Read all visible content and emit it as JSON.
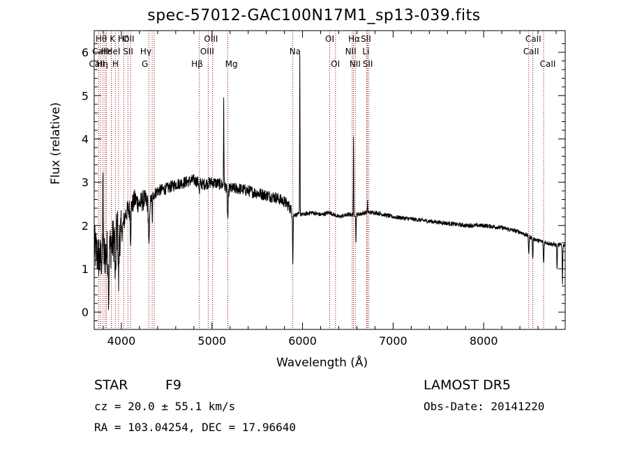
{
  "header": {
    "title": "spec-57012-GAC100N17M1_sp13-039.fits"
  },
  "info": {
    "object_class": "STAR",
    "subclass": "F9",
    "survey": "LAMOST DR5",
    "cz": "cz = 20.0 ± 55.1 km/s",
    "obs_date": "Obs-Date: 20141220",
    "radec": "RA = 103.04254, DEC =  17.96640"
  },
  "chart_data": {
    "type": "line",
    "title": "spec-57012-GAC100N17M1_sp13-039.fits",
    "xlabel": "Wavelength (Å)",
    "ylabel": "Flux (relative)",
    "xlim": [
      3700,
      8900
    ],
    "ylim": [
      -0.4,
      6.5
    ],
    "xticks": [
      4000,
      5000,
      6000,
      7000,
      8000
    ],
    "yticks": [
      0,
      1,
      2,
      3,
      4,
      5,
      6
    ],
    "colors": {
      "line": "#000000",
      "marker_lines": "#8b0000"
    },
    "continuum": [
      [
        3700,
        1.5
      ],
      [
        3760,
        1.2
      ],
      [
        3800,
        1.3
      ],
      [
        3850,
        1.4
      ],
      [
        3900,
        1.6
      ],
      [
        3950,
        1.9
      ],
      [
        4000,
        1.8
      ],
      [
        4050,
        2.3
      ],
      [
        4100,
        2.4
      ],
      [
        4150,
        2.6
      ],
      [
        4200,
        2.5
      ],
      [
        4250,
        2.6
      ],
      [
        4300,
        2.5
      ],
      [
        4350,
        2.7
      ],
      [
        4400,
        2.8
      ],
      [
        4500,
        2.85
      ],
      [
        4600,
        2.95
      ],
      [
        4700,
        3.0
      ],
      [
        4800,
        3.05
      ],
      [
        4900,
        2.95
      ],
      [
        5000,
        3.0
      ],
      [
        5100,
        2.95
      ],
      [
        5200,
        2.85
      ],
      [
        5300,
        2.85
      ],
      [
        5400,
        2.8
      ],
      [
        5500,
        2.75
      ],
      [
        5600,
        2.7
      ],
      [
        5700,
        2.65
      ],
      [
        5800,
        2.55
      ],
      [
        5850,
        2.45
      ],
      [
        5900,
        2.25
      ],
      [
        6000,
        2.25
      ],
      [
        6100,
        2.3
      ],
      [
        6200,
        2.25
      ],
      [
        6300,
        2.3
      ],
      [
        6400,
        2.2
      ],
      [
        6500,
        2.25
      ],
      [
        6600,
        2.25
      ],
      [
        6700,
        2.3
      ],
      [
        6800,
        2.3
      ],
      [
        6900,
        2.25
      ],
      [
        7000,
        2.2
      ],
      [
        7200,
        2.15
      ],
      [
        7400,
        2.1
      ],
      [
        7600,
        2.05
      ],
      [
        7800,
        2.0
      ],
      [
        8000,
        2.0
      ],
      [
        8200,
        1.95
      ],
      [
        8400,
        1.85
      ],
      [
        8500,
        1.75
      ],
      [
        8600,
        1.65
      ],
      [
        8700,
        1.6
      ],
      [
        8800,
        1.55
      ],
      [
        8900,
        1.55
      ]
    ],
    "features": [
      {
        "x": 3797,
        "depth": 2.3,
        "width": 3,
        "sign": 1
      },
      {
        "x": 3860,
        "depth": 1.0,
        "width": 6,
        "sign": -1
      },
      {
        "x": 3934,
        "depth": 1.2,
        "width": 6,
        "sign": -1
      },
      {
        "x": 3969,
        "depth": 1.2,
        "width": 6,
        "sign": -1
      },
      {
        "x": 4102,
        "depth": 0.7,
        "width": 5,
        "sign": -1
      },
      {
        "x": 4305,
        "depth": 1.0,
        "width": 8,
        "sign": -1
      },
      {
        "x": 4341,
        "depth": 0.6,
        "width": 4,
        "sign": -1
      },
      {
        "x": 4861,
        "depth": 0.3,
        "width": 4,
        "sign": -1
      },
      {
        "x": 5130,
        "depth": 2.1,
        "width": 3,
        "sign": 1
      },
      {
        "x": 5175,
        "depth": 0.7,
        "width": 8,
        "sign": -1
      },
      {
        "x": 5893,
        "depth": 1.2,
        "width": 4,
        "sign": -1
      },
      {
        "x": 5970,
        "depth": 3.7,
        "width": 3,
        "sign": 1
      },
      {
        "x": 6563,
        "depth": 1.8,
        "width": 3,
        "sign": 1
      },
      {
        "x": 6590,
        "depth": 0.6,
        "width": 3,
        "sign": -1
      },
      {
        "x": 6718,
        "depth": 0.25,
        "width": 3,
        "sign": 1
      },
      {
        "x": 8498,
        "depth": 0.4,
        "width": 5,
        "sign": -1
      },
      {
        "x": 8542,
        "depth": 0.5,
        "width": 5,
        "sign": -1
      },
      {
        "x": 8662,
        "depth": 0.5,
        "width": 5,
        "sign": -1
      },
      {
        "x": 8810,
        "depth": 0.6,
        "width": 4,
        "sign": -1
      },
      {
        "x": 8870,
        "depth": 0.9,
        "width": 4,
        "sign": -1
      }
    ],
    "line_markers": [
      {
        "x": 3750
      },
      {
        "x": 3771
      },
      {
        "x": 3798
      },
      {
        "x": 3820
      },
      {
        "x": 3835
      },
      {
        "x": 3889
      },
      {
        "x": 3934
      },
      {
        "x": 3969
      },
      {
        "x": 4026
      },
      {
        "x": 4072
      },
      {
        "x": 4102
      },
      {
        "x": 4304
      },
      {
        "x": 4340
      },
      {
        "x": 4363
      },
      {
        "x": 4861
      },
      {
        "x": 4959
      },
      {
        "x": 5007
      },
      {
        "x": 5175
      },
      {
        "x": 5893
      },
      {
        "x": 6300
      },
      {
        "x": 6364
      },
      {
        "x": 6548
      },
      {
        "x": 6563
      },
      {
        "x": 6583
      },
      {
        "x": 6707
      },
      {
        "x": 6716
      },
      {
        "x": 6731
      },
      {
        "x": 8498
      },
      {
        "x": 8542
      },
      {
        "x": 8662
      }
    ],
    "line_labels": [
      {
        "text": "Hθ",
        "x": 3778,
        "row": 0
      },
      {
        "text": "K",
        "x": 3902,
        "row": 0
      },
      {
        "text": "Hδ",
        "x": 4025,
        "row": 0
      },
      {
        "text": "OII",
        "x": 4080,
        "row": 0
      },
      {
        "text": "OIII",
        "x": 4990,
        "row": 0
      },
      {
        "text": "OI",
        "x": 6300,
        "row": 0
      },
      {
        "text": "Hα",
        "x": 6570,
        "row": 0
      },
      {
        "text": "SII",
        "x": 6700,
        "row": 0
      },
      {
        "text": "CaII",
        "x": 8548,
        "row": 0
      },
      {
        "text": "CaII",
        "x": 8524,
        "row": 1
      },
      {
        "text": "CaI",
        "x": 3752,
        "row": 1
      },
      {
        "text": "Hε",
        "x": 3836,
        "row": 1
      },
      {
        "text": "HeI",
        "x": 3912,
        "row": 1
      },
      {
        "text": "SII",
        "x": 4074,
        "row": 1
      },
      {
        "text": "Hγ",
        "x": 4270,
        "row": 1
      },
      {
        "text": "OIII",
        "x": 4947,
        "row": 1
      },
      {
        "text": "Na",
        "x": 5918,
        "row": 1
      },
      {
        "text": "NII",
        "x": 6532,
        "row": 1
      },
      {
        "text": "Li",
        "x": 6700,
        "row": 1
      },
      {
        "text": "CaII",
        "x": 3730,
        "row": 2
      },
      {
        "text": "Hη",
        "x": 3790,
        "row": 2
      },
      {
        "text": "H",
        "x": 3934,
        "row": 2
      },
      {
        "text": "G",
        "x": 4260,
        "row": 2
      },
      {
        "text": "Hβ",
        "x": 4836,
        "row": 2
      },
      {
        "text": "Mg",
        "x": 5215,
        "row": 2
      },
      {
        "text": "OI",
        "x": 6363,
        "row": 2
      },
      {
        "text": "NII",
        "x": 6580,
        "row": 2
      },
      {
        "text": "SII",
        "x": 6720,
        "row": 2
      },
      {
        "text": "CaII",
        "x": 8708,
        "row": 2
      }
    ]
  }
}
